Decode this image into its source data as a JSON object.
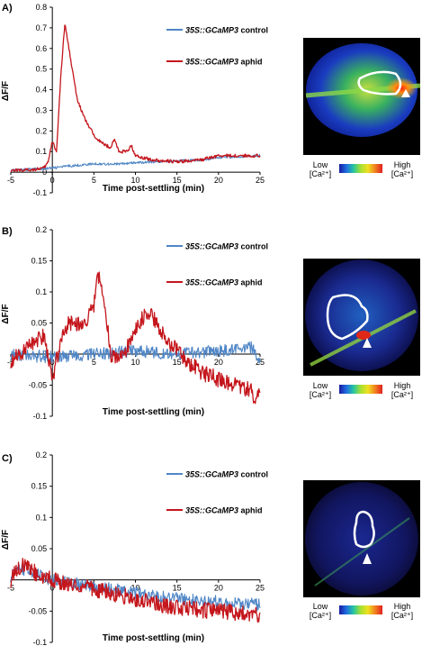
{
  "colors": {
    "control": "#4f86c6",
    "aphid": "#c4161c"
  },
  "scale_bar": {
    "low": "Low",
    "high": "High",
    "unit": "[Ca²⁺]"
  },
  "chart_data": [
    {
      "panel": "A)",
      "type": "line",
      "xlabel": "Time post-settling (min)",
      "ylabel": "ΔF/F",
      "xlim": [
        -5,
        25
      ],
      "ylim": [
        -0.1,
        0.8
      ],
      "yticks": [
        -0.1,
        0,
        0.1,
        0.2,
        0.3,
        0.4,
        0.5,
        0.6,
        0.7,
        0.8
      ],
      "yticklabels": [
        "-0.1",
        "0",
        "0.1",
        "0.2",
        "0.3",
        "0.4",
        "0.5",
        "0.6",
        "0.7",
        "0.8"
      ],
      "xticks": [
        -5,
        0,
        5,
        10,
        15,
        20,
        25
      ],
      "xticklabels": [
        "-5",
        "0",
        "5",
        "10",
        "15",
        "20",
        "25"
      ],
      "legend": [
        "35S::GCaMP3 control",
        "35S::GCaMP3 aphid"
      ],
      "series": [
        {
          "name": "35S::GCaMP3 control",
          "x": [
            -5,
            -2,
            0,
            2,
            5,
            8,
            10,
            12,
            15,
            18,
            20,
            22,
            25
          ],
          "y": [
            0.01,
            0.015,
            0.02,
            0.03,
            0.04,
            0.04,
            0.045,
            0.05,
            0.055,
            0.06,
            0.07,
            0.075,
            0.08
          ]
        },
        {
          "name": "35S::GCaMP3 aphid",
          "x": [
            -5,
            -3,
            -1,
            -0.5,
            0,
            0.5,
            1,
            1.5,
            2,
            3,
            4,
            5,
            6,
            7,
            7.5,
            8,
            9,
            9.5,
            10,
            12,
            15,
            18,
            20,
            22,
            25
          ],
          "y": [
            0.01,
            0.01,
            0.02,
            0.05,
            0.15,
            0.1,
            0.45,
            0.72,
            0.6,
            0.35,
            0.25,
            0.18,
            0.14,
            0.12,
            0.16,
            0.1,
            0.1,
            0.13,
            0.08,
            0.06,
            0.05,
            0.06,
            0.08,
            0.08,
            0.08
          ]
        }
      ]
    },
    {
      "panel": "B)",
      "type": "line",
      "xlabel": "Time post-settling (min)",
      "ylabel": "ΔF/F",
      "xlim": [
        -5,
        25
      ],
      "ylim": [
        -0.1,
        0.2
      ],
      "yticks": [
        -0.1,
        -0.05,
        0,
        0.05,
        0.1,
        0.15,
        0.2
      ],
      "yticklabels": [
        "-0.1",
        "-0.05",
        "0",
        "0.05",
        "0.1",
        "0.15",
        "0.2"
      ],
      "xticks": [
        -5,
        0,
        5,
        10,
        15,
        20,
        25
      ],
      "xticklabels": [
        "-5",
        "0",
        "5",
        "10",
        "15",
        "20",
        "25"
      ],
      "legend": [
        "35S::GCaMP3 control",
        "35S::GCaMP3 aphid"
      ],
      "series": [
        {
          "name": "35S::GCaMP3 control",
          "x": [
            -5,
            0,
            5,
            10,
            15,
            20,
            24,
            25
          ],
          "y": [
            0.0,
            -0.005,
            0.0,
            0.005,
            0.0,
            0.005,
            0.01,
            -0.01
          ]
        },
        {
          "name": "35S::GCaMP3 aphid",
          "x": [
            -5,
            -3,
            -1,
            0,
            1,
            2,
            3,
            4,
            5,
            5.5,
            6,
            6.5,
            7,
            8,
            9,
            10,
            11,
            12,
            13,
            14,
            16,
            18,
            20,
            22,
            24,
            24.5,
            25
          ],
          "y": [
            -0.01,
            0.01,
            0.03,
            -0.04,
            0.02,
            0.05,
            0.05,
            0.05,
            0.08,
            0.13,
            0.1,
            0.06,
            0.0,
            -0.01,
            0.01,
            0.04,
            0.06,
            0.06,
            0.04,
            0.02,
            -0.01,
            -0.03,
            -0.04,
            -0.05,
            -0.06,
            -0.08,
            -0.05
          ]
        }
      ]
    },
    {
      "panel": "C)",
      "type": "line",
      "xlabel": "Time post-settling (min)",
      "ylabel": "ΔF/F",
      "xlim": [
        -5,
        25
      ],
      "ylim": [
        -0.1,
        0.2
      ],
      "yticks": [
        -0.1,
        -0.05,
        0,
        0.05,
        0.1,
        0.15,
        0.2
      ],
      "yticklabels": [
        "-0.1",
        "-0.05",
        "0",
        "0.05",
        "0.1",
        "0.15",
        "0.2"
      ],
      "xticks": [
        -5,
        0,
        5,
        10,
        15,
        20,
        25
      ],
      "xticklabels": [
        "-5",
        "0",
        "5",
        "10",
        "15",
        "20",
        "25"
      ],
      "legend": [
        "35S::GCaMP3 control",
        "35S::GCaMP3 aphid"
      ],
      "series": [
        {
          "name": "35S::GCaMP3 control",
          "x": [
            -5,
            -4,
            -2,
            0,
            5,
            10,
            15,
            20,
            25
          ],
          "y": [
            0.005,
            0.02,
            0.01,
            0.0,
            -0.01,
            -0.02,
            -0.03,
            -0.035,
            -0.04
          ]
        },
        {
          "name": "35S::GCaMP3 aphid",
          "x": [
            -5,
            -4,
            -3,
            -2,
            0,
            5,
            10,
            15,
            20,
            25
          ],
          "y": [
            0.0,
            0.02,
            0.025,
            0.01,
            0.0,
            -0.015,
            -0.03,
            -0.045,
            -0.05,
            -0.055
          ]
        }
      ]
    }
  ]
}
